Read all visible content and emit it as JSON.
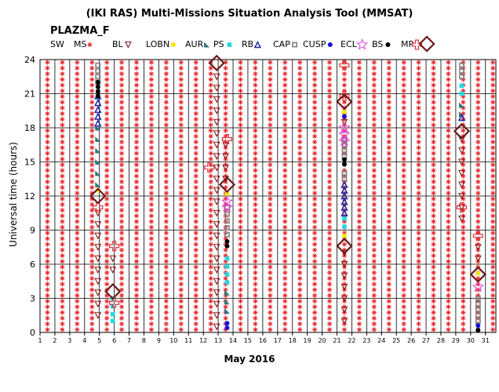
{
  "chart_data": {
    "type": "scatter",
    "title": "(IKI RAS) Multi-Missions Situation Analysis Tool (MMSAT)",
    "subtitle": "PLAZMA_F",
    "xlabel": "May 2016",
    "ylabel": "Universal time (hours)",
    "xlim": [
      1,
      31.7
    ],
    "ylim": [
      0,
      24
    ],
    "yticks": [
      0,
      3,
      6,
      9,
      12,
      15,
      18,
      21,
      24
    ],
    "xticks": [
      1,
      2,
      3,
      4,
      5,
      6,
      7,
      8,
      9,
      10,
      11,
      12,
      13,
      14,
      15,
      16,
      17,
      18,
      19,
      20,
      21,
      22,
      23,
      24,
      25,
      26,
      27,
      28,
      29,
      30,
      31
    ],
    "grid": true,
    "legend_placement": "top",
    "legend": [
      {
        "name": "SW",
        "marker": "none",
        "color": "#000000"
      },
      {
        "name": "MS",
        "marker": "asterisk",
        "color": "#e8262b"
      },
      {
        "name": "BL",
        "marker": "triangle-down",
        "color": "#8b1a1a"
      },
      {
        "name": "LOBN",
        "marker": "circle",
        "color": "#f2e600"
      },
      {
        "name": "AUR",
        "marker": "wedge",
        "color": "#2e7a80"
      },
      {
        "name": "PS",
        "marker": "square",
        "color": "#22d7e0"
      },
      {
        "name": "RB",
        "marker": "triangle-up",
        "color": "#1c2aa8"
      },
      {
        "name": "CAP",
        "marker": "square-open",
        "color": "#808080"
      },
      {
        "name": "CUSP",
        "marker": "circle",
        "color": "#1010e0"
      },
      {
        "name": "ECL",
        "marker": "star",
        "color": "#e040e0"
      },
      {
        "name": "BS",
        "marker": "circle",
        "color": "#000000"
      },
      {
        "name": "MP",
        "marker": "cross-open",
        "color": "#e0303a"
      },
      {
        "name": "",
        "marker": "diamond",
        "color": "#6b1a1a"
      }
    ],
    "series": [
      {
        "name": "MS",
        "x_range": [
          1,
          31.7
        ],
        "y_range": [
          0,
          24
        ],
        "note_grid": true
      },
      {
        "name": "BL",
        "points": [
          [
            4.9,
            10.5
          ],
          [
            4.9,
            9.5
          ],
          [
            4.9,
            8.5
          ],
          [
            4.9,
            7.5
          ],
          [
            4.9,
            6.5
          ],
          [
            4.9,
            5.5
          ],
          [
            4.9,
            4.5
          ],
          [
            4.9,
            3.5
          ],
          [
            4.9,
            2.5
          ],
          [
            4.9,
            1.5
          ],
          [
            5.9,
            6.5
          ],
          [
            5.9,
            5.5
          ],
          [
            12.9,
            22.5
          ],
          [
            12.9,
            21.5
          ],
          [
            12.9,
            20.5
          ],
          [
            12.9,
            19.5
          ],
          [
            12.9,
            18.5
          ],
          [
            12.9,
            17.5
          ],
          [
            12.9,
            16.5
          ],
          [
            12.9,
            15.5
          ],
          [
            12.9,
            14.5
          ],
          [
            12.9,
            13.5
          ],
          [
            12.9,
            12.5
          ],
          [
            12.9,
            11.5
          ],
          [
            12.9,
            10.5
          ],
          [
            12.9,
            9.5
          ],
          [
            12.9,
            8.5
          ],
          [
            12.9,
            7.5
          ],
          [
            12.9,
            6.5
          ],
          [
            12.9,
            5.5
          ],
          [
            12.9,
            4.5
          ],
          [
            12.9,
            3.5
          ],
          [
            12.9,
            2.5
          ],
          [
            12.9,
            1.5
          ],
          [
            12.9,
            0.5
          ],
          [
            13.5,
            16.5
          ],
          [
            13.5,
            15.5
          ],
          [
            13.5,
            14.5
          ],
          [
            13.5,
            13.5
          ],
          [
            21.5,
            18.5
          ],
          [
            21.5,
            7.0
          ],
          [
            21.5,
            6.0
          ],
          [
            21.5,
            5.0
          ],
          [
            21.5,
            4.0
          ],
          [
            21.5,
            3.0
          ],
          [
            21.5,
            2.0
          ],
          [
            21.5,
            1.0
          ],
          [
            29.4,
            17.0
          ],
          [
            29.4,
            16.0
          ],
          [
            29.4,
            15.0
          ],
          [
            29.4,
            14.0
          ],
          [
            29.4,
            13.0
          ],
          [
            29.4,
            12.0
          ],
          [
            29.4,
            11.0
          ],
          [
            29.4,
            10.0
          ],
          [
            30.5,
            7.5
          ],
          [
            30.5,
            6.5
          ]
        ]
      },
      {
        "name": "LOBN",
        "points": [
          [
            4.9,
            12.5
          ],
          [
            13.6,
            12.2
          ],
          [
            21.5,
            19.4
          ],
          [
            21.5,
            8.5
          ],
          [
            30.5,
            5.2
          ]
        ]
      },
      {
        "name": "AUR",
        "points": [
          [
            4.9,
            18.0
          ],
          [
            4.9,
            17.0
          ],
          [
            4.9,
            16.0
          ],
          [
            4.9,
            15.0
          ],
          [
            4.9,
            14.0
          ],
          [
            4.9,
            13.0
          ],
          [
            13.6,
            3.5
          ],
          [
            13.6,
            2.7
          ],
          [
            13.6,
            1.9
          ],
          [
            29.4,
            20.0
          ],
          [
            29.4,
            19.2
          ]
        ]
      },
      {
        "name": "PS",
        "points": [
          [
            5.9,
            3.0
          ],
          [
            5.9,
            2.3
          ],
          [
            5.9,
            1.6
          ],
          [
            5.9,
            1.0
          ],
          [
            13.6,
            6.5
          ],
          [
            13.6,
            5.8
          ],
          [
            13.6,
            5.1
          ],
          [
            13.6,
            4.4
          ],
          [
            21.5,
            10.0
          ],
          [
            21.5,
            9.3
          ],
          [
            29.4,
            21.7
          ],
          [
            29.4,
            21.0
          ]
        ]
      },
      {
        "name": "RB",
        "points": [
          [
            4.9,
            20.8
          ],
          [
            4.9,
            20.2
          ],
          [
            4.9,
            19.6
          ],
          [
            4.9,
            19.0
          ],
          [
            4.9,
            18.4
          ],
          [
            21.5,
            13.0
          ],
          [
            21.5,
            12.5
          ],
          [
            21.5,
            12.0
          ],
          [
            21.5,
            11.5
          ],
          [
            21.5,
            11.0
          ],
          [
            21.5,
            10.5
          ],
          [
            29.4,
            18.9
          ]
        ]
      },
      {
        "name": "CAP",
        "points": [
          [
            4.9,
            23.5
          ],
          [
            4.9,
            23.0
          ],
          [
            4.9,
            22.5
          ],
          [
            4.9,
            22.0
          ],
          [
            13.6,
            11.0
          ],
          [
            13.6,
            10.4
          ],
          [
            13.6,
            9.8
          ],
          [
            13.6,
            9.2
          ],
          [
            13.6,
            8.6
          ],
          [
            21.5,
            17.0
          ],
          [
            21.5,
            16.5
          ],
          [
            21.5,
            16.0
          ],
          [
            21.5,
            15.5
          ],
          [
            21.5,
            14.0
          ],
          [
            21.5,
            13.5
          ],
          [
            29.4,
            23.5
          ],
          [
            29.4,
            23.0
          ],
          [
            29.4,
            22.5
          ],
          [
            30.5,
            3.0
          ],
          [
            30.5,
            2.5
          ],
          [
            30.5,
            2.0
          ],
          [
            30.5,
            1.5
          ],
          [
            30.5,
            1.0
          ]
        ]
      },
      {
        "name": "CUSP",
        "points": [
          [
            13.6,
            0.8
          ],
          [
            13.6,
            0.4
          ],
          [
            21.5,
            19.0
          ],
          [
            30.5,
            0.6
          ]
        ]
      },
      {
        "name": "ECL",
        "points": [
          [
            21.5,
            18.0
          ],
          [
            21.5,
            17.4
          ],
          [
            21.5,
            16.8
          ],
          [
            13.6,
            11.5
          ],
          [
            13.6,
            11.0
          ],
          [
            30.5,
            4.0
          ]
        ]
      },
      {
        "name": "BS",
        "points": [
          [
            4.9,
            22.0
          ],
          [
            4.9,
            21.6
          ],
          [
            4.9,
            21.2
          ],
          [
            4.9,
            20.8
          ],
          [
            13.6,
            8.0
          ],
          [
            13.6,
            7.6
          ],
          [
            21.5,
            15.2
          ],
          [
            21.5,
            14.8
          ],
          [
            30.5,
            0.2
          ]
        ]
      },
      {
        "name": "MP",
        "points": [
          [
            12.4,
            14.5
          ],
          [
            13.6,
            17.0
          ],
          [
            6.0,
            7.6
          ],
          [
            6.0,
            2.6
          ],
          [
            4.9,
            11.0
          ],
          [
            21.5,
            23.5
          ],
          [
            21.5,
            20.8
          ],
          [
            29.4,
            11.0
          ],
          [
            30.5,
            8.5
          ]
        ]
      },
      {
        "name": "",
        "points": [
          [
            4.9,
            12.0
          ],
          [
            5.9,
            3.6
          ],
          [
            12.9,
            23.7
          ],
          [
            13.6,
            13.0
          ],
          [
            21.5,
            20.3
          ],
          [
            21.5,
            7.6
          ],
          [
            29.4,
            17.7
          ],
          [
            30.5,
            5.1
          ]
        ]
      }
    ]
  }
}
